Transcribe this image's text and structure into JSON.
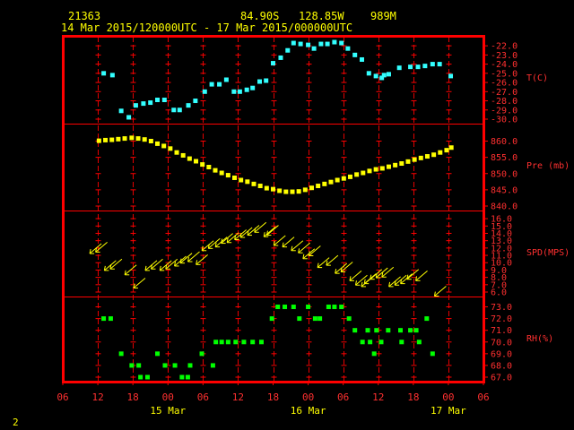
{
  "header": {
    "station": "21363",
    "latitude": "84.90S",
    "longitude": "128.85W",
    "elevation": "989M",
    "time_range": "14 Mar 2015/120000UTC - 17 Mar 2015/000000UTC"
  },
  "footer": {
    "page_number": "2"
  },
  "colors": {
    "frame": "#ff0000",
    "temperature": "#33ffff",
    "pressure": "#ffff00",
    "wind": "#ffff00",
    "humidity": "#00ff00",
    "header_text": "#ffff00",
    "tick_text": "#ff3030"
  },
  "chart_data": {
    "type": "scatter",
    "x_unit": "hours since 14 Mar 2015 06 UTC",
    "x_range": [
      0,
      72
    ],
    "x_tick_labels": [
      "06",
      "12",
      "18",
      "00",
      "06",
      "12",
      "18",
      "00",
      "06",
      "12",
      "18",
      "00",
      "06"
    ],
    "x_tick_values": [
      0,
      6,
      12,
      18,
      24,
      30,
      36,
      42,
      48,
      54,
      60,
      66,
      72
    ],
    "date_labels": [
      {
        "text": "15 Mar",
        "x": 18
      },
      {
        "text": "16 Mar",
        "x": 42
      },
      {
        "text": "17 Mar",
        "x": 66
      }
    ],
    "panels": [
      {
        "name": "T(C)",
        "ylim": [
          -30,
          -21.5
        ],
        "y_ticks": [
          -22,
          -23,
          -24,
          -25,
          -26,
          -27,
          -28,
          -29,
          -30
        ],
        "y_tick_labels": [
          "-22.0",
          "-23.0",
          "-24.0",
          "-25.0",
          "-26.0",
          "-27.0",
          "-28.0",
          "-29.0",
          "-30.0"
        ],
        "series": [
          {
            "marker": "square",
            "color": "#33ffff",
            "points": [
              [
                7,
                -25.0
              ],
              [
                8.5,
                -25.2
              ],
              [
                10,
                -29.1
              ],
              [
                11.3,
                -29.8
              ],
              [
                12.5,
                -28.5
              ],
              [
                13.8,
                -28.3
              ],
              [
                15,
                -28.2
              ],
              [
                16.2,
                -27.9
              ],
              [
                17.4,
                -27.9
              ],
              [
                19,
                -29.0
              ],
              [
                20,
                -29.0
              ],
              [
                21.5,
                -28.5
              ],
              [
                22.7,
                -28.0
              ],
              [
                24.3,
                -27.0
              ],
              [
                25.5,
                -26.2
              ],
              [
                26.8,
                -26.2
              ],
              [
                28,
                -25.7
              ],
              [
                29.3,
                -27.0
              ],
              [
                30.3,
                -27.0
              ],
              [
                31.5,
                -26.8
              ],
              [
                32.5,
                -26.6
              ],
              [
                33.7,
                -25.9
              ],
              [
                34.8,
                -25.8
              ],
              [
                36,
                -23.9
              ],
              [
                37.3,
                -23.3
              ],
              [
                38.5,
                -22.5
              ],
              [
                39.5,
                -21.7
              ],
              [
                40.7,
                -21.8
              ],
              [
                42,
                -21.9
              ],
              [
                43,
                -22.3
              ],
              [
                44.2,
                -21.8
              ],
              [
                45.3,
                -21.8
              ],
              [
                46.5,
                -21.6
              ],
              [
                47.7,
                -21.7
              ],
              [
                48.8,
                -22.3
              ],
              [
                50,
                -23.0
              ],
              [
                51.2,
                -23.5
              ],
              [
                52.4,
                -25.0
              ],
              [
                53.6,
                -25.3
              ],
              [
                54.6,
                -25.5
              ],
              [
                55,
                -25.2
              ],
              [
                55.8,
                -25.1
              ],
              [
                57.6,
                -24.4
              ],
              [
                59.5,
                -24.3
              ],
              [
                60.8,
                -24.3
              ],
              [
                62,
                -24.2
              ],
              [
                63.3,
                -24.0
              ],
              [
                64.5,
                -24.0
              ],
              [
                66.4,
                -25.3
              ]
            ]
          }
        ]
      },
      {
        "name": "Pre (mb)",
        "ylim": [
          840,
          864
        ],
        "y_ticks": [
          860,
          855,
          850,
          845,
          840
        ],
        "y_tick_labels": [
          "860.0",
          "855.0",
          "850.0",
          "845.0",
          "840.0"
        ],
        "series": [
          {
            "marker": "square",
            "color": "#ffff00",
            "points": [
              [
                6.2,
                860.1
              ],
              [
                7.3,
                860.3
              ],
              [
                8.4,
                860.4
              ],
              [
                9.5,
                860.6
              ],
              [
                10.6,
                860.8
              ],
              [
                11.8,
                861.0
              ],
              [
                12.9,
                860.8
              ],
              [
                14,
                860.5
              ],
              [
                15.1,
                860.0
              ],
              [
                16.2,
                859.2
              ],
              [
                17.3,
                858.5
              ],
              [
                18.4,
                857.7
              ],
              [
                19.5,
                856.5
              ],
              [
                20.6,
                855.6
              ],
              [
                21.7,
                854.6
              ],
              [
                22.8,
                853.8
              ],
              [
                23.9,
                852.8
              ],
              [
                25,
                852.0
              ],
              [
                26.1,
                851.0
              ],
              [
                27.2,
                850.2
              ],
              [
                28.3,
                849.5
              ],
              [
                29.4,
                848.7
              ],
              [
                30.5,
                848.0
              ],
              [
                31.6,
                847.5
              ],
              [
                32.7,
                846.8
              ],
              [
                33.8,
                846.2
              ],
              [
                34.9,
                845.5
              ],
              [
                36,
                845.2
              ],
              [
                37.1,
                844.7
              ],
              [
                38.2,
                844.4
              ],
              [
                39.3,
                844.4
              ],
              [
                40.4,
                844.5
              ],
              [
                41.5,
                845.0
              ],
              [
                42.6,
                845.6
              ],
              [
                43.7,
                846.2
              ],
              [
                44.8,
                846.8
              ],
              [
                45.9,
                847.4
              ],
              [
                47,
                848.0
              ],
              [
                48.1,
                848.5
              ],
              [
                49.2,
                849.0
              ],
              [
                50.3,
                849.7
              ],
              [
                51.4,
                850.2
              ],
              [
                52.5,
                850.8
              ],
              [
                53.6,
                851.3
              ],
              [
                54.7,
                851.6
              ],
              [
                55.8,
                852.1
              ],
              [
                56.9,
                852.6
              ],
              [
                58,
                853.1
              ],
              [
                59.1,
                853.7
              ],
              [
                60.2,
                854.3
              ],
              [
                61.3,
                854.8
              ],
              [
                62.4,
                855.3
              ],
              [
                63.5,
                855.8
              ],
              [
                64.6,
                856.5
              ],
              [
                65.7,
                857.2
              ],
              [
                66.5,
                858.0
              ]
            ]
          }
        ]
      },
      {
        "name": "SPD(MPS)",
        "ylim": [
          6,
          16.5
        ],
        "y_ticks": [
          16,
          15,
          14,
          13,
          12,
          11,
          10,
          9,
          8,
          7,
          6
        ],
        "y_tick_labels": [
          "16.0",
          "15.0",
          "14.0",
          "13.0",
          "12.0",
          "11.0",
          "10.0",
          "9.0",
          "8.0",
          "7.0",
          "6.0"
        ],
        "series": [
          {
            "marker": "wind-arrow",
            "color": "#ffff00",
            "points": [
              [
                6,
                12.1
              ],
              [
                7,
                12.3
              ],
              [
                8.5,
                9.8
              ],
              [
                9.5,
                10.0
              ],
              [
                12,
                9.2
              ],
              [
                13.5,
                7.4
              ],
              [
                15.5,
                9.8
              ],
              [
                16.5,
                10.0
              ],
              [
                18,
                9.8
              ],
              [
                19,
                10.0
              ],
              [
                20.5,
                10.4
              ],
              [
                21.5,
                10.8
              ],
              [
                22.8,
                11.0
              ],
              [
                24.2,
                10.6
              ],
              [
                25.2,
                12.5
              ],
              [
                26.3,
                12.8
              ],
              [
                27.5,
                13.0
              ],
              [
                28.5,
                13.5
              ],
              [
                29.5,
                13.6
              ],
              [
                30.8,
                14.0
              ],
              [
                31.8,
                14.3
              ],
              [
                33,
                14.6
              ],
              [
                34.2,
                15.0
              ],
              [
                35.8,
                14.4
              ],
              [
                36.3,
                14.6
              ],
              [
                37.5,
                13.2
              ],
              [
                39,
                13.0
              ],
              [
                40.5,
                12.5
              ],
              [
                41.7,
                12.2
              ],
              [
                42.5,
                11.4
              ],
              [
                43.5,
                11.8
              ],
              [
                45,
                10.2
              ],
              [
                46.5,
                10.5
              ],
              [
                48,
                9.4
              ],
              [
                49,
                9.6
              ],
              [
                50.5,
                8.4
              ],
              [
                51.5,
                7.8
              ],
              [
                52.5,
                7.6
              ],
              [
                53,
                8.0
              ],
              [
                54,
                8.6
              ],
              [
                55,
                8.8
              ],
              [
                56,
                8.9
              ],
              [
                57.2,
                7.6
              ],
              [
                58.2,
                7.8
              ],
              [
                59.2,
                8.0
              ],
              [
                60.3,
                8.6
              ],
              [
                61.8,
                8.4
              ],
              [
                65,
                6.3
              ]
            ]
          }
        ]
      },
      {
        "name": "RH(%)",
        "ylim": [
          67,
          73.5
        ],
        "y_ticks": [
          73,
          72,
          71,
          70,
          69,
          68,
          67
        ],
        "y_tick_labels": [
          "73.0",
          "72.0",
          "71.0",
          "70.0",
          "69.0",
          "68.0",
          "67.0"
        ],
        "series": [
          {
            "marker": "square",
            "color": "#00ff00",
            "points": [
              [
                7,
                72
              ],
              [
                8.2,
                72
              ],
              [
                10,
                69
              ],
              [
                11.8,
                68
              ],
              [
                13,
                68
              ],
              [
                13.3,
                67
              ],
              [
                14.5,
                67
              ],
              [
                16.2,
                69
              ],
              [
                17.5,
                68
              ],
              [
                19.2,
                68
              ],
              [
                20.4,
                67
              ],
              [
                21.4,
                67
              ],
              [
                21.8,
                68
              ],
              [
                23.8,
                69
              ],
              [
                25.7,
                68
              ],
              [
                26.2,
                70
              ],
              [
                27.2,
                70
              ],
              [
                28.3,
                70
              ],
              [
                29.6,
                70
              ],
              [
                31,
                70
              ],
              [
                32.5,
                70
              ],
              [
                34,
                70
              ],
              [
                35.8,
                72
              ],
              [
                36.8,
                73
              ],
              [
                38,
                73
              ],
              [
                39.5,
                73
              ],
              [
                40.5,
                72
              ],
              [
                42,
                73
              ],
              [
                43.2,
                72
              ],
              [
                44,
                72
              ],
              [
                45.5,
                73
              ],
              [
                46.5,
                73
              ],
              [
                47.7,
                73
              ],
              [
                49,
                72
              ],
              [
                50,
                71
              ],
              [
                51.3,
                70
              ],
              [
                52.2,
                71
              ],
              [
                52.6,
                70
              ],
              [
                53.3,
                69
              ],
              [
                53.7,
                71
              ],
              [
                54.5,
                70
              ],
              [
                55.7,
                71
              ],
              [
                57.8,
                71
              ],
              [
                58,
                70
              ],
              [
                59.5,
                71
              ],
              [
                60.5,
                71
              ],
              [
                61,
                70
              ],
              [
                62.3,
                72
              ],
              [
                63.3,
                69
              ]
            ]
          }
        ]
      }
    ]
  }
}
